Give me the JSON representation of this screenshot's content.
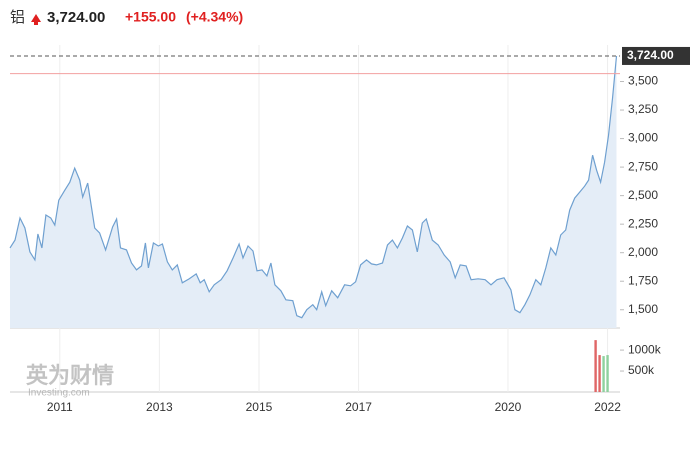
{
  "header": {
    "name": "铝",
    "price": "3,724.00",
    "change": "+155.00",
    "change_pct": "(+4.34%)"
  },
  "watermark": {
    "brand": "英为财情",
    "site": "Investing.com"
  },
  "chart_data": {
    "type": "line",
    "color": "#6fa0d0",
    "fill": "#e4edf7",
    "x": [
      2010.0,
      2010.1,
      2010.2,
      2010.3,
      2010.4,
      2010.5,
      2010.56,
      2010.64,
      2010.72,
      2010.82,
      2010.9,
      2010.98,
      2011.1,
      2011.2,
      2011.3,
      2011.4,
      2011.46,
      2011.56,
      2011.7,
      2011.8,
      2011.92,
      2012.06,
      2012.14,
      2012.22,
      2012.34,
      2012.44,
      2012.54,
      2012.64,
      2012.72,
      2012.78,
      2012.88,
      2012.98,
      2013.06,
      2013.16,
      2013.26,
      2013.36,
      2013.46,
      2013.6,
      2013.74,
      2013.82,
      2013.9,
      2014.0,
      2014.1,
      2014.24,
      2014.36,
      2014.48,
      2014.6,
      2014.68,
      2014.78,
      2014.88,
      2014.96,
      2015.06,
      2015.16,
      2015.24,
      2015.32,
      2015.44,
      2015.54,
      2015.68,
      2015.76,
      2015.86,
      2015.96,
      2016.08,
      2016.16,
      2016.26,
      2016.34,
      2016.46,
      2016.58,
      2016.72,
      2016.84,
      2016.94,
      2017.04,
      2017.16,
      2017.26,
      2017.36,
      2017.48,
      2017.58,
      2017.68,
      2017.78,
      2017.88,
      2017.98,
      2018.08,
      2018.18,
      2018.28,
      2018.36,
      2018.48,
      2018.6,
      2018.72,
      2018.84,
      2018.94,
      2019.04,
      2019.16,
      2019.26,
      2019.4,
      2019.54,
      2019.66,
      2019.78,
      2019.92,
      2020.06,
      2020.14,
      2020.24,
      2020.34,
      2020.44,
      2020.56,
      2020.66,
      2020.76,
      2020.86,
      2020.96,
      2021.06,
      2021.16,
      2021.24,
      2021.34,
      2021.44,
      2021.54,
      2021.62,
      2021.7,
      2021.78,
      2021.86,
      2021.94,
      2022.02,
      2022.1,
      2022.18
    ],
    "values": [
      2042,
      2110,
      2304,
      2216,
      2007,
      1937,
      2164,
      2042,
      2330,
      2304,
      2242,
      2460,
      2548,
      2618,
      2740,
      2636,
      2487,
      2610,
      2216,
      2173,
      2024,
      2225,
      2295,
      2042,
      2024,
      1910,
      1849,
      1884,
      2085,
      1867,
      2085,
      2059,
      2076,
      1919,
      1849,
      1893,
      1736,
      1771,
      1814,
      1736,
      1763,
      1657,
      1719,
      1763,
      1841,
      1954,
      2076,
      1954,
      2059,
      2015,
      1841,
      1849,
      1797,
      1910,
      1719,
      1666,
      1587,
      1579,
      1448,
      1430,
      1500,
      1544,
      1500,
      1657,
      1535,
      1666,
      1605,
      1719,
      1710,
      1745,
      1893,
      1937,
      1902,
      1893,
      1910,
      2067,
      2110,
      2042,
      2129,
      2234,
      2199,
      2007,
      2260,
      2295,
      2110,
      2067,
      1980,
      1919,
      1780,
      1893,
      1884,
      1763,
      1771,
      1763,
      1719,
      1763,
      1780,
      1675,
      1500,
      1474,
      1544,
      1631,
      1763,
      1719,
      1867,
      2042,
      1980,
      2155,
      2199,
      2373,
      2478,
      2531,
      2583,
      2636,
      2854,
      2723,
      2618,
      2793,
      3028,
      3352,
      3724
    ],
    "xlim": [
      2010,
      2022.25
    ],
    "xticks": [
      2011,
      2013,
      2015,
      2017,
      2020,
      2022
    ],
    "ylim": [
      1340,
      3820
    ],
    "yticks": [
      {
        "value": 1500,
        "label": "1,500"
      },
      {
        "value": 1750,
        "label": "1,750"
      },
      {
        "value": 2000,
        "label": "2,000"
      },
      {
        "value": 2250,
        "label": "2,250"
      },
      {
        "value": 2500,
        "label": "2,500"
      },
      {
        "value": 2750,
        "label": "2,750"
      },
      {
        "value": 3000,
        "label": "3,000"
      },
      {
        "value": 3250,
        "label": "3,250"
      },
      {
        "value": 3500,
        "label": "3,500"
      }
    ],
    "grid": true,
    "last_value": {
      "value": 3724,
      "label": "3,724.00"
    },
    "reference_line": 3569,
    "reference_color": "#f2a0a0",
    "volume": {
      "x": [
        2021.76,
        2021.84,
        2021.92,
        2022.0
      ],
      "values": [
        1238000,
        881000,
        857000,
        881000
      ],
      "colors": [
        "#e06666",
        "#e06666",
        "#8fd19e",
        "#8fd19e"
      ],
      "ylim": [
        0,
        1360000
      ],
      "yticks": [
        {
          "value": 500000,
          "label": "500k"
        },
        {
          "value": 1000000,
          "label": "1000k"
        }
      ]
    }
  }
}
